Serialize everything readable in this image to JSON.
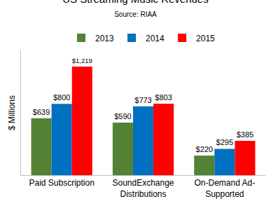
{
  "chart_data": {
    "type": "bar",
    "title": "US Streaming Music Revenues",
    "subtitle": "Source: RIAA",
    "y_label": "$ Millions",
    "categories": [
      "Paid Subscription",
      "SoundExchange Distributions",
      "On-Demand Ad-Supported"
    ],
    "series": [
      {
        "name": "2013",
        "color": "#548235",
        "values": [
          639,
          590,
          220
        ],
        "value_labels": [
          "$639",
          "$590",
          "$220"
        ]
      },
      {
        "name": "2014",
        "color": "#0070c0",
        "values": [
          800,
          773,
          295
        ],
        "value_labels": [
          "$800",
          "$773",
          "$295"
        ]
      },
      {
        "name": "2015",
        "color": "#ff0000",
        "values": [
          1219,
          803,
          385
        ],
        "value_labels": [
          "$1,219",
          "$803",
          "$385"
        ]
      }
    ],
    "ylim": [
      0,
      1400
    ],
    "grid": false,
    "legend": "top",
    "data_labels": true,
    "tick_labels": "x"
  }
}
